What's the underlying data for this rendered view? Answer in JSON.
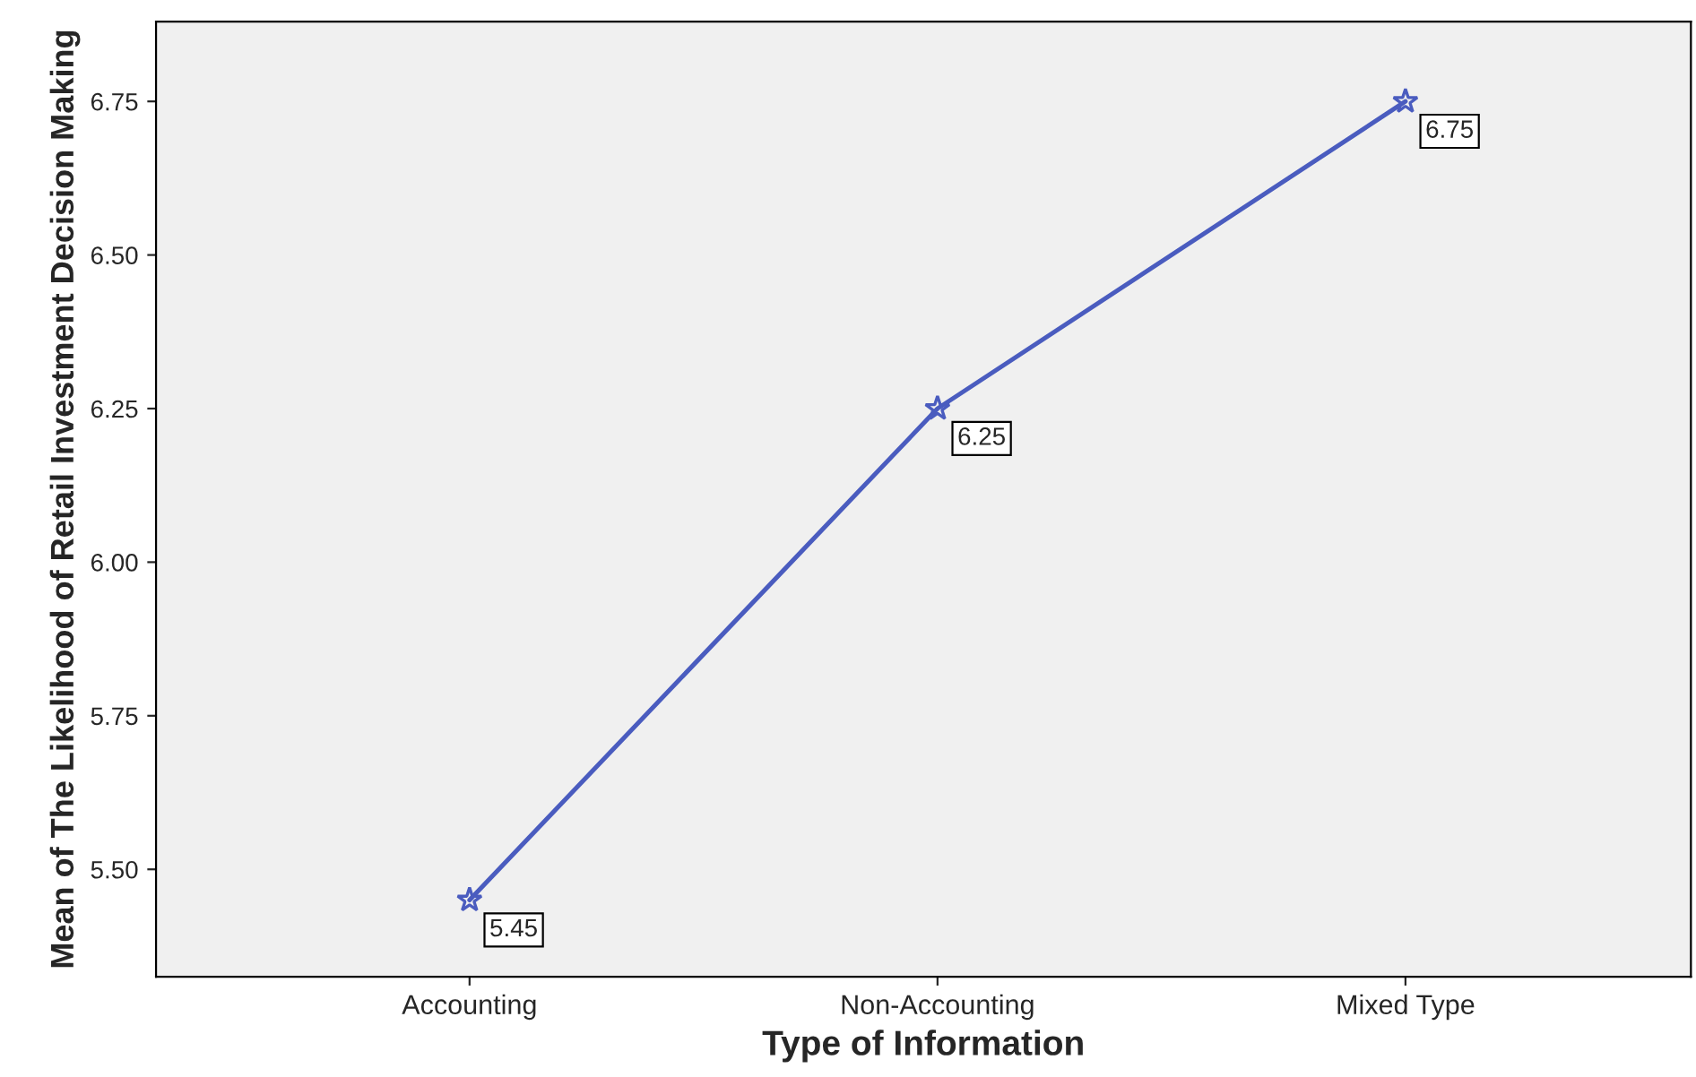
{
  "chart_data": {
    "type": "line",
    "xlabel": "Type of Information",
    "ylabel": "Mean of The Likelihood of Retail Investment Decision Making",
    "categories": [
      "Accounting",
      "Non-Accounting",
      "Mixed Type"
    ],
    "series": [
      {
        "color": "#4a5cbf",
        "values": [
          5.45,
          6.25,
          6.75
        ]
      }
    ],
    "ylim": [
      5.325,
      6.88
    ],
    "yticks": [
      "5.50",
      "5.75",
      "6.00",
      "6.25",
      "6.50",
      "6.75"
    ],
    "data_labels": true,
    "marker": "star",
    "line_style": "solid",
    "grid": false
  }
}
